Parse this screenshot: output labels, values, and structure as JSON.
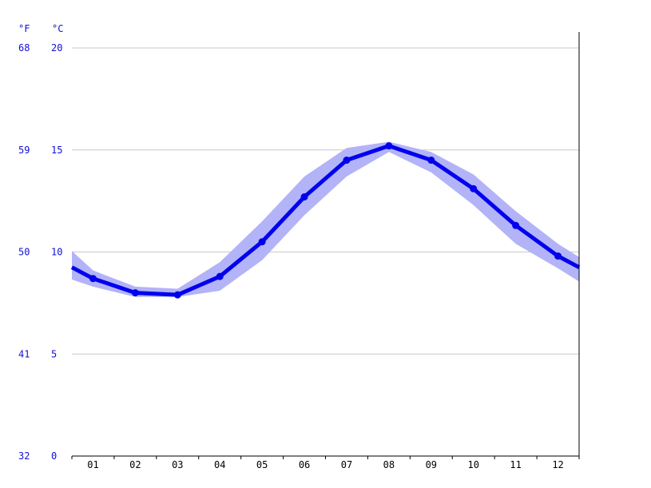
{
  "chart_data": {
    "type": "line",
    "title": "",
    "xlabel": "",
    "ylabel": "",
    "units": {
      "left": "°F",
      "right": "°C"
    },
    "categories": [
      "01",
      "02",
      "03",
      "04",
      "05",
      "06",
      "07",
      "08",
      "09",
      "10",
      "11",
      "12"
    ],
    "series": [
      {
        "values": [
          8.7,
          8.0,
          7.9,
          8.8,
          10.5,
          12.7,
          14.5,
          15.2,
          14.5,
          13.1,
          11.3,
          9.8
        ],
        "band_low": [
          8.3,
          7.8,
          7.8,
          8.1,
          9.6,
          11.8,
          13.7,
          14.9,
          13.9,
          12.3,
          10.4,
          9.2
        ],
        "band_high": [
          9.1,
          8.3,
          8.2,
          9.5,
          11.5,
          13.7,
          15.1,
          15.4,
          14.9,
          13.8,
          12.0,
          10.4
        ]
      }
    ],
    "ylim": [
      0,
      20
    ],
    "yticks_c": [
      "0",
      "5",
      "10",
      "15",
      "20"
    ],
    "yticks_f": [
      "32",
      "41",
      "50",
      "59",
      "68"
    ],
    "grid": true,
    "colors": {
      "line": "#0000ee",
      "band": "#b3b3f8",
      "grid": "#c8c8c8",
      "axis_text": "#1010d8"
    }
  }
}
